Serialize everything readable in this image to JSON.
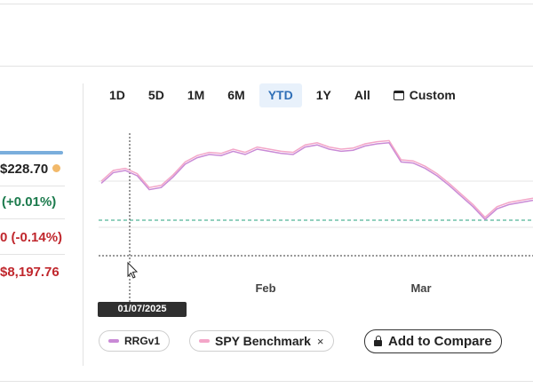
{
  "stats": {
    "value": "$228.70",
    "change_green": "(+0.01%)",
    "change_red": "0 (-0.14%)",
    "amount": "$8,197.76"
  },
  "tabs": [
    "1D",
    "5D",
    "1M",
    "6M",
    "YTD",
    "1Y",
    "All"
  ],
  "active_tab": "YTD",
  "custom_tab": "Custom",
  "chart_data": {
    "type": "line",
    "x_tick_labels": [
      "Feb",
      "Mar"
    ],
    "crosshair_date": "01/07/2025",
    "series": [
      {
        "name": "RRGv1",
        "color": "#c98ad6",
        "values": [
          -0.2,
          0.8,
          1.0,
          0.5,
          -0.8,
          -0.6,
          0.4,
          1.6,
          2.2,
          2.5,
          2.4,
          2.8,
          2.5,
          3.0,
          2.8,
          2.6,
          2.5,
          3.2,
          3.4,
          3.0,
          2.8,
          2.9,
          3.3,
          3.5,
          3.6,
          1.8,
          1.7,
          1.2,
          0.5,
          -0.4,
          -1.4,
          -2.4,
          -3.6,
          -2.6,
          -2.2,
          -2.0,
          -1.8
        ]
      },
      {
        "name": "SPY Benchmark",
        "color": "#f3a6c8",
        "values": [
          0.0,
          1.0,
          1.2,
          0.7,
          -0.6,
          -0.4,
          0.6,
          1.8,
          2.4,
          2.7,
          2.6,
          3.0,
          2.7,
          3.2,
          3.0,
          2.8,
          2.7,
          3.4,
          3.6,
          3.2,
          3.0,
          3.1,
          3.5,
          3.7,
          3.8,
          2.0,
          1.9,
          1.4,
          0.7,
          -0.2,
          -1.2,
          -2.2,
          -3.4,
          -2.4,
          -2.0,
          -1.8,
          -1.6
        ]
      }
    ],
    "baseline_color": "#6fc1a8",
    "legend_placement": "bottom"
  },
  "legend": {
    "series1": "RRGv1",
    "series2": "SPY Benchmark",
    "remove_icon": "×",
    "compare_button": "Add to Compare"
  }
}
